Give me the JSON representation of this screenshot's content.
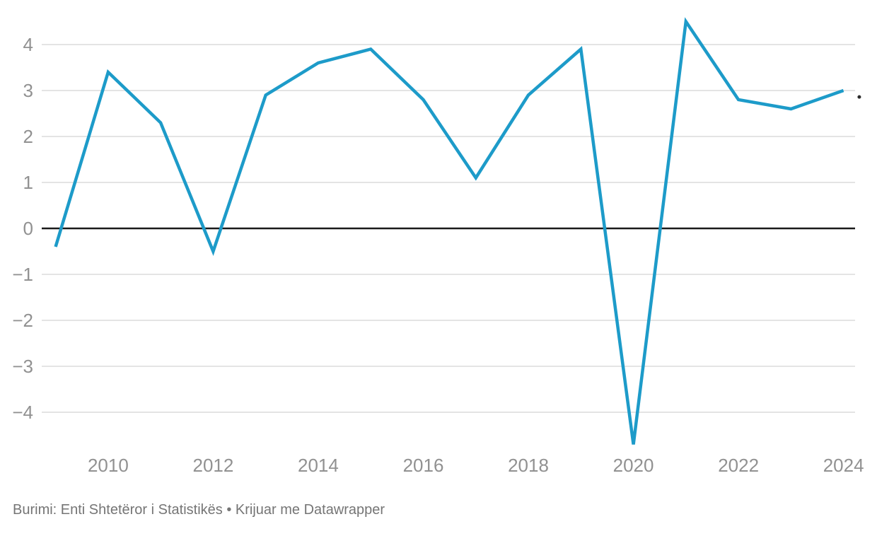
{
  "chart_data": {
    "type": "line",
    "x": [
      2009,
      2010,
      2011,
      2012,
      2013,
      2014,
      2015,
      2016,
      2017,
      2018,
      2019,
      2020,
      2021,
      2022,
      2023,
      2024
    ],
    "values": [
      -0.4,
      3.4,
      2.3,
      -0.5,
      2.9,
      3.6,
      3.9,
      2.8,
      1.1,
      2.9,
      3.9,
      -4.7,
      4.5,
      2.8,
      2.6,
      3.0
    ],
    "title": "",
    "xlabel": "",
    "ylabel": "",
    "ylim": [
      -5.0,
      4.6
    ],
    "yticks": [
      4,
      3,
      2,
      1,
      0,
      -1,
      -2,
      -3,
      -4
    ],
    "ytick_labels": [
      "4",
      "3",
      "2",
      "1",
      "0",
      "−1",
      "−2",
      "−3",
      "−4"
    ],
    "xticks": [
      2010,
      2012,
      2014,
      2016,
      2018,
      2020,
      2022,
      2024
    ],
    "xtick_labels": [
      "2010",
      "2012",
      "2014",
      "2016",
      "2018",
      "2020",
      "2022",
      "2024"
    ],
    "grid": "horizontal",
    "legend": "none",
    "zero_line": true,
    "annotations": [
      {
        "type": "dot",
        "x": 2024.3,
        "value": 2.86
      }
    ]
  },
  "footer": {
    "text": "Burimi: Enti Shtetëror i Statistikës • Krijuar me Datawrapper"
  },
  "colors": {
    "line": "#1d9bc9",
    "grid": "#e4e4e4",
    "zero_line": "#1a1a1a",
    "axis_text": "#919191",
    "footer_text": "#757575",
    "annotation_dot": "#2b2b2b",
    "background": "#ffffff"
  }
}
